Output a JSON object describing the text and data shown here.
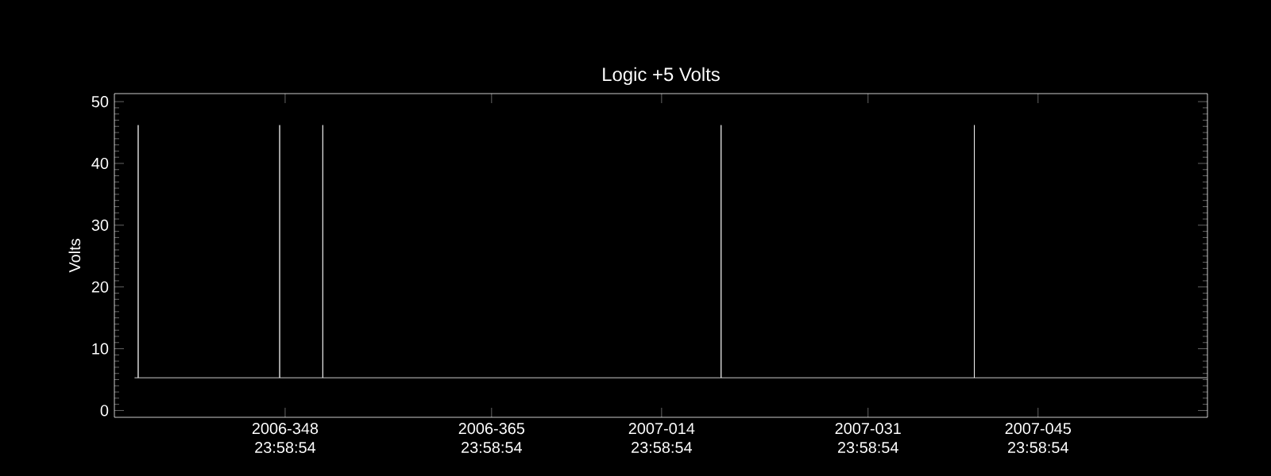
{
  "chart_data": {
    "type": "line",
    "title": "Logic +5 Volts",
    "ylabel": "Volts",
    "color": "#ffffff",
    "x": [
      "2006-12-02T14:23",
      "2006-12-02T21:35",
      "2006-12-02T21:35",
      "2006-12-02T21:35",
      "2006-12-14T13:11",
      "2006-12-14T13:11",
      "2006-12-14T13:11",
      "2006-12-18T02:23",
      "2006-12-18T02:23",
      "2006-12-18T02:23",
      "2007-01-19T21:35",
      "2007-01-19T21:35",
      "2007-01-19T21:35",
      "2007-02-09T17:59",
      "2007-02-09T17:59",
      "2007-02-09T17:59",
      "2007-02-28T21:35"
    ],
    "values": [
      5.3,
      5.3,
      46.2,
      5.3,
      5.3,
      46.2,
      5.3,
      5.3,
      46.2,
      5.3,
      5.3,
      46.2,
      5.3,
      5.3,
      46.2,
      5.3,
      5.3
    ],
    "xlim": [
      "2006-11-30T22:33",
      "2007-02-28T22:47"
    ],
    "ylim": [
      -1.1,
      51.3
    ],
    "xticks": [
      {
        "value": "2006-12-14T23:59",
        "label": "2006-348 23:58:54"
      },
      {
        "value": "2006-12-31T23:59",
        "label": "2006-365 23:58:54"
      },
      {
        "value": "2007-01-14T23:59",
        "label": "2007-014 23:58:54"
      },
      {
        "value": "2007-01-31T23:59",
        "label": "2007-031 23:58:54"
      },
      {
        "value": "2007-02-14T23:59",
        "label": "2007-045 23:58:54"
      }
    ],
    "yticks": [
      0,
      10,
      20,
      30,
      40,
      50
    ],
    "grid": false,
    "marker": "none",
    "line_style": "solid"
  }
}
